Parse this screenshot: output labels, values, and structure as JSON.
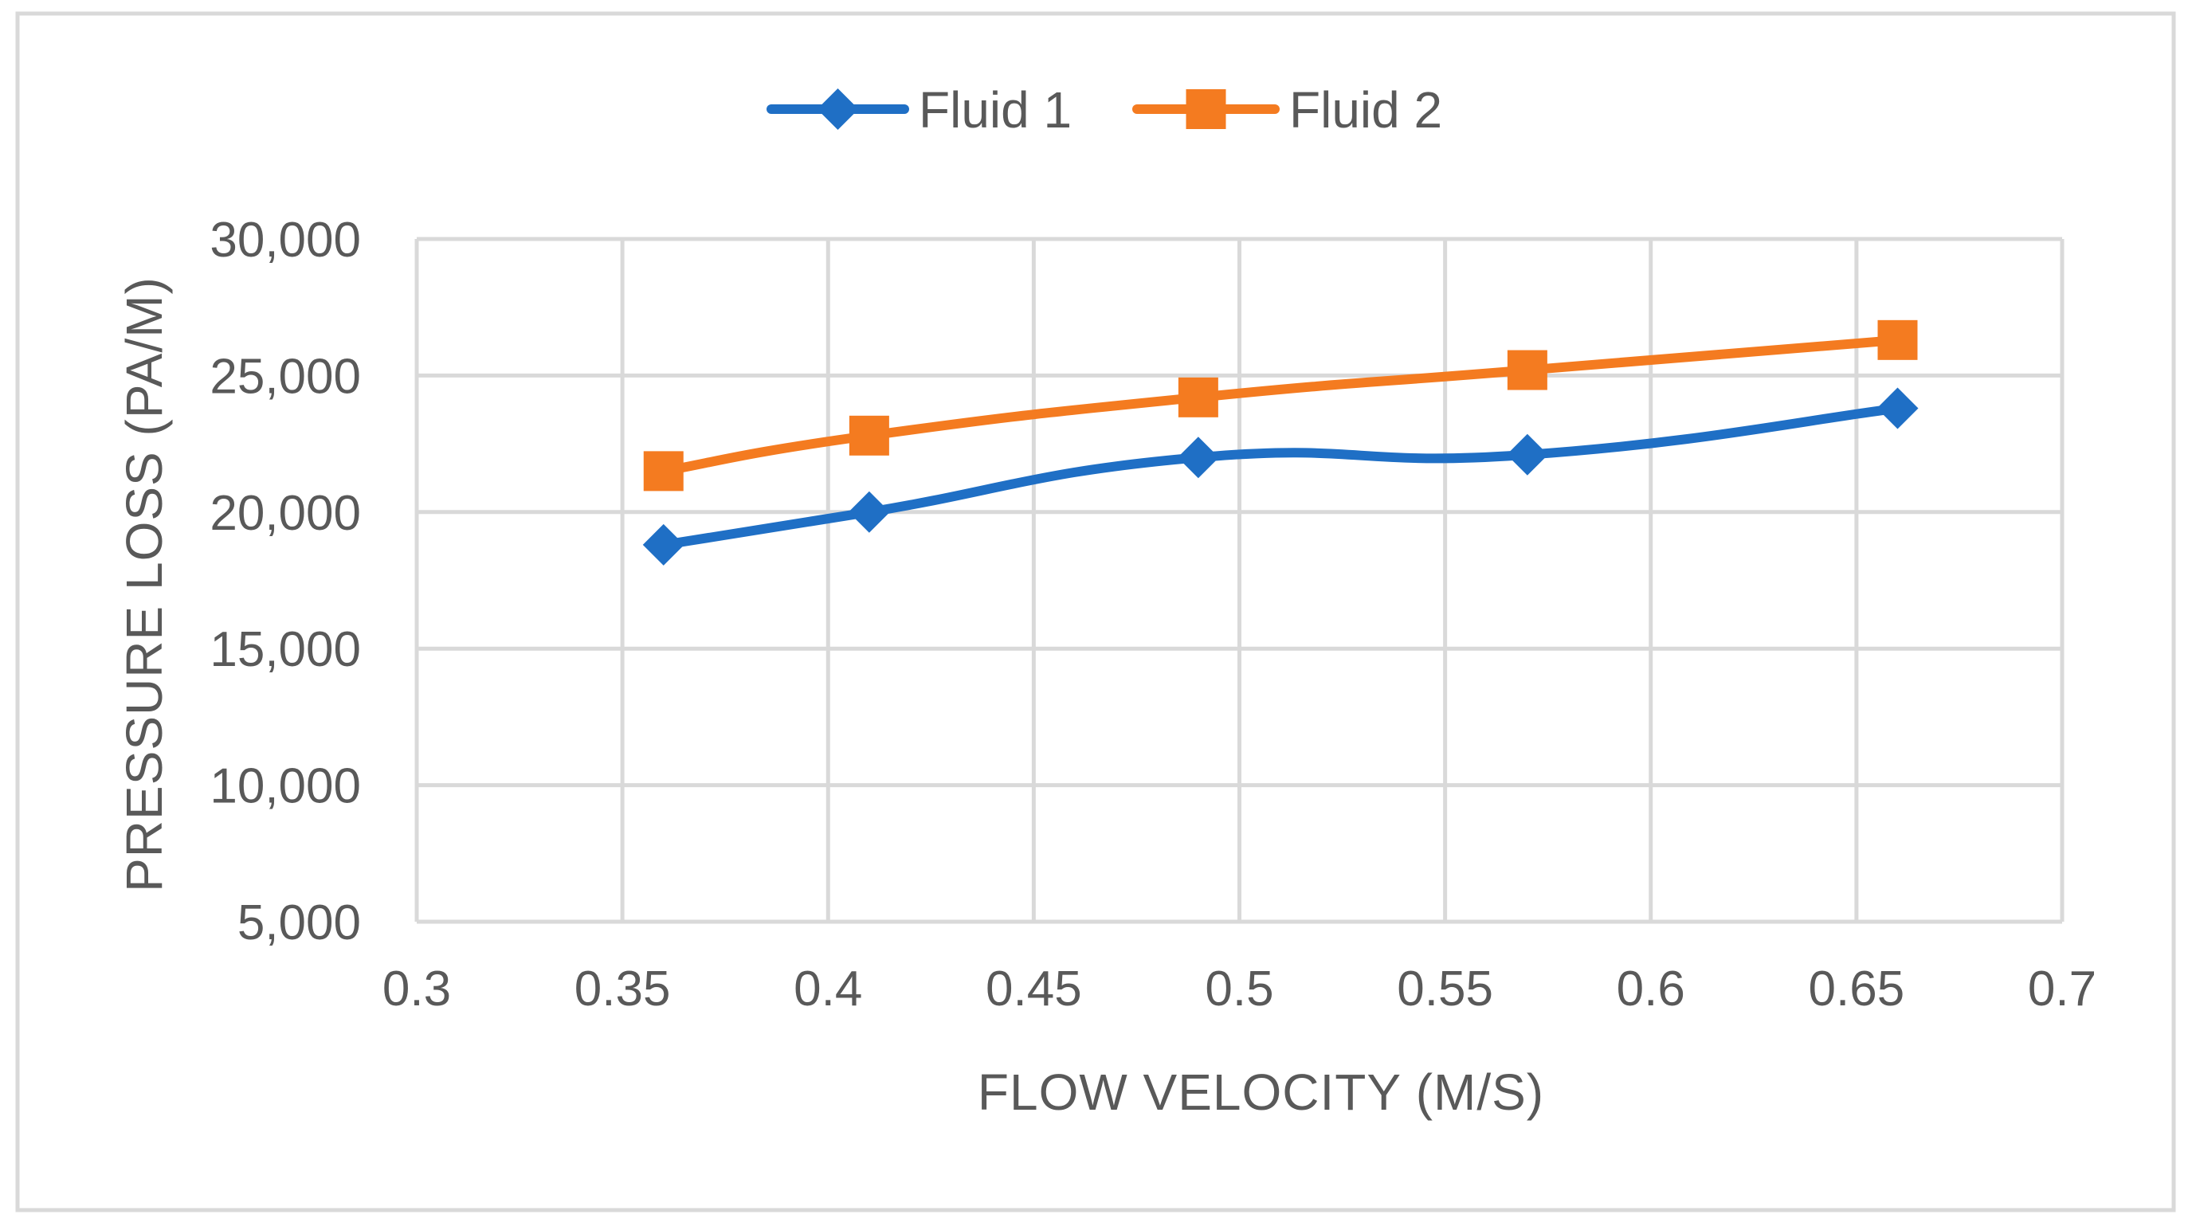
{
  "chart_data": {
    "type": "line",
    "title": "",
    "xlabel": "FLOW VELOCITY (M/S)",
    "ylabel": "PRESSURE LOSS (PA/M)",
    "xlim": [
      0.3,
      0.7
    ],
    "ylim": [
      5000,
      30000
    ],
    "x_ticks": [
      0.3,
      0.35,
      0.4,
      0.45,
      0.5,
      0.55,
      0.6,
      0.65,
      0.7
    ],
    "x_tick_labels": [
      "0.3",
      "0.35",
      "0.4",
      "0.45",
      "0.5",
      "0.55",
      "0.6",
      "0.65",
      "0.7"
    ],
    "y_ticks": [
      5000,
      10000,
      15000,
      20000,
      25000,
      30000
    ],
    "y_tick_labels": [
      "5,000",
      "10,000",
      "15,000",
      "20,000",
      "25,000",
      "30,000"
    ],
    "grid": true,
    "legend_position": "top-center",
    "smoothed": true,
    "series": [
      {
        "name": "Fluid 1",
        "color": "#1f6fc5",
        "marker": "diamond",
        "x": [
          0.36,
          0.41,
          0.49,
          0.57,
          0.66
        ],
        "y": [
          18800,
          20000,
          22000,
          22100,
          23800
        ]
      },
      {
        "name": "Fluid 2",
        "color": "#f47b20",
        "marker": "square",
        "x": [
          0.36,
          0.41,
          0.49,
          0.57,
          0.66
        ],
        "y": [
          21500,
          22800,
          24200,
          25200,
          26300
        ]
      }
    ]
  }
}
